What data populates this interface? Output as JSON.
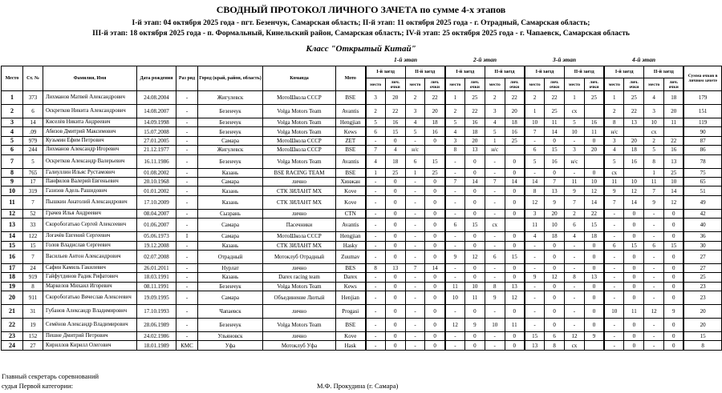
{
  "title": "СВОДНЫЙ ПРОТОКОЛ ЛИЧНОГО ЗАЧЕТА по сумме 4-х этапов",
  "subtitle1": "I-й этап: 04 октября 2025 года - пгт. Безенчук, Самарская область; II-й этап: 11 октября 2025 года - г. Отрадный, Самарская область;",
  "subtitle2": "III-й этап: 18 октября 2025 года - п. Формальный, Кинельский район, Самарская область; IV-й этап: 25 октября 2025 года - г. Чапаевск, Самарская область",
  "class_title": "Класс \"Открытый Китай\"",
  "stages": [
    "1-й этап",
    "2-й этап",
    "3-й этап",
    "4-й этап"
  ],
  "headers": {
    "place": "Место",
    "num": "Ст. №",
    "name": "Фамилия, Имя",
    "dob": "Дата рождения",
    "rank": "Раз ряд",
    "city": "Город (край, район, область)",
    "team": "Команда",
    "moto": "Мото",
    "race1": "I-й заезд",
    "race2": "II-й заезд",
    "pos": "место",
    "pts": "лич. очки",
    "total": "Сумма очков в личном зачете"
  },
  "rows": [
    {
      "place": "1",
      "num": "373",
      "name": "Лихманов Матвей Александрович",
      "dob": "24.08.2004",
      "rank": "-",
      "city": "Жигулевск",
      "team": "МотоШкола СССР",
      "moto": "BSE",
      "r": [
        "3",
        "20",
        "2",
        "22",
        "1",
        "25",
        "2",
        "22",
        "2",
        "22",
        "1",
        "25",
        "1",
        "25",
        "4",
        "18"
      ],
      "total": "179"
    },
    {
      "place": "2",
      "num": "6",
      "name": "Оскретков Никита Александрович",
      "dob": "14.08.2007",
      "rank": "-",
      "city": "Безенчук",
      "team": "Volga Motors Team",
      "moto": "Avantis",
      "r": [
        "2",
        "22",
        "3",
        "20",
        "2",
        "22",
        "3",
        "20",
        "1",
        "25",
        "сх",
        "",
        "2",
        "22",
        "3",
        "20"
      ],
      "total": "151"
    },
    {
      "place": "3",
      "num": "14",
      "name": "Киселёв Никита Андреевич",
      "dob": "14.09.1998",
      "rank": "-",
      "city": "Безенчук",
      "team": "Volga Motors Team",
      "moto": "Hengjian",
      "r": [
        "5",
        "16",
        "4",
        "18",
        "5",
        "16",
        "4",
        "18",
        "10",
        "11",
        "5",
        "16",
        "8",
        "13",
        "10",
        "11"
      ],
      "total": "119"
    },
    {
      "place": "4",
      "num": ".09",
      "name": "Абизов Дмитрий Максимович",
      "dob": "15.07.2008",
      "rank": "-",
      "city": "Безенчук",
      "team": "Volga Motors Team",
      "moto": "Kews",
      "r": [
        "6",
        "15",
        "5",
        "16",
        "4",
        "18",
        "5",
        "16",
        "7",
        "14",
        "10",
        "11",
        "н/с",
        "",
        "сх",
        ""
      ],
      "total": "90"
    },
    {
      "place": "5",
      "num": "979",
      "name": "Кузьмин Ефим Петрович",
      "dob": "27.01.2005",
      "rank": "-",
      "city": "Самара",
      "team": "МотоШкола СССР",
      "moto": "ZET",
      "r": [
        "-",
        "0",
        "-",
        "0",
        "3",
        "20",
        "1",
        "25",
        "-",
        "0",
        "-",
        "0",
        "3",
        "20",
        "2",
        "22"
      ],
      "total": "87"
    },
    {
      "place": "6",
      "num": "244",
      "name": "Лихманов Александр Игоревич",
      "dob": "21.12.1977",
      "rank": "-",
      "city": "Жигулевск",
      "team": "МотоШкола СССР",
      "moto": "BSE",
      "r": [
        "7",
        "4",
        "н/с",
        "",
        "8",
        "13",
        "н/с",
        "",
        "6",
        "15",
        "3",
        "20",
        "4",
        "18",
        "5",
        "16"
      ],
      "total": "86"
    },
    {
      "place": "7",
      "num": "5",
      "name": "Оскретков Александр Валерьевич",
      "dob": "16.11.1986",
      "rank": "-",
      "city": "Безенчук",
      "team": "Volga Motors Team",
      "moto": "Avantis",
      "r": [
        "4",
        "18",
        "6",
        "15",
        "-",
        "0",
        "-",
        "0",
        "5",
        "16",
        "н/с",
        "",
        "5",
        "16",
        "8",
        "13"
      ],
      "total": "78"
    },
    {
      "place": "8",
      "num": "765",
      "name": "Галиуллин Ильяс Рустамович",
      "dob": "01.08.2002",
      "rank": "-",
      "city": "Казань",
      "team": "BSE RACING TEAM",
      "moto": "BSE",
      "r": [
        "1",
        "25",
        "1",
        "25",
        "-",
        "0",
        "-",
        "0",
        "-",
        "0",
        "-",
        "0",
        "сх",
        "",
        "1",
        "25"
      ],
      "total": "75"
    },
    {
      "place": "9",
      "num": "17",
      "name": "Панфилов Валерий Евгеньевич",
      "dob": "20.10.1968",
      "rank": "-",
      "city": "Самара",
      "team": "лично",
      "moto": "Хинжан",
      "r": [
        "-",
        "0",
        "-",
        "0",
        "7",
        "14",
        "7",
        "14",
        "14",
        "7",
        "11",
        "10",
        "11",
        "10",
        "11",
        "10"
      ],
      "total": "65"
    },
    {
      "place": "10",
      "num": "319",
      "name": "Газизов Адель Рашидович",
      "dob": "01.01.2002",
      "rank": "-",
      "city": "Казань",
      "team": "СТК ЗИЛАНТ МХ",
      "moto": "Kove",
      "r": [
        "-",
        "0",
        "-",
        "0",
        "-",
        "0",
        "-",
        "0",
        "8",
        "13",
        "9",
        "12",
        "9",
        "12",
        "7",
        "14"
      ],
      "total": "51"
    },
    {
      "place": "11",
      "num": "7",
      "name": "Пышкин Анатолий Александрович",
      "dob": "17.10.2009",
      "rank": "-",
      "city": "Казань",
      "team": "СТК ЗИЛАНТ МХ",
      "moto": "Kove",
      "r": [
        "-",
        "0",
        "-",
        "0",
        "-",
        "0",
        "-",
        "0",
        "12",
        "9",
        "7",
        "14",
        "7",
        "14",
        "9",
        "12"
      ],
      "total": "49"
    },
    {
      "place": "12",
      "num": "52",
      "name": "Грачев Илья Андреевич",
      "dob": "08.04.2007",
      "rank": "-",
      "city": "Сызрань",
      "team": "лично",
      "moto": "CTN",
      "r": [
        "-",
        "0",
        "-",
        "0",
        "-",
        "0",
        "-",
        "0",
        "3",
        "20",
        "2",
        "22",
        "-",
        "0",
        "-",
        "0"
      ],
      "total": "42"
    },
    {
      "place": "13",
      "num": "33",
      "name": "Скоробогатько Сергей Алексеевич",
      "dob": "01.06.2007",
      "rank": "-",
      "city": "Самара",
      "team": "Пасечники",
      "moto": "Avantis",
      "r": [
        "-",
        "0",
        "-",
        "0",
        "6",
        "15",
        "сх",
        "",
        "11",
        "10",
        "6",
        "15",
        "-",
        "0",
        "-",
        "0"
      ],
      "total": "40"
    },
    {
      "place": "14",
      "num": "122",
      "name": "Логачёв Евгений Сергеевич",
      "dob": "05.06.1973",
      "rank": "I",
      "city": "Самара",
      "team": "МотоШкола СССР",
      "moto": "Hengjian",
      "r": [
        "-",
        "0",
        "-",
        "0",
        "-",
        "0",
        "-",
        "0",
        "4",
        "18",
        "4",
        "18",
        "-",
        "0",
        "-",
        "0"
      ],
      "total": "36"
    },
    {
      "place": "15",
      "num": "15",
      "name": "Голов Владислав Сергеевич",
      "dob": "19.12.2008",
      "rank": "-",
      "city": "Казань",
      "team": "СТК ЗИЛАНТ МХ",
      "moto": "Hasky",
      "r": [
        "-",
        "0",
        "-",
        "0",
        "-",
        "0",
        "-",
        "0",
        "-",
        "0",
        "-",
        "0",
        "6",
        "15",
        "6",
        "15"
      ],
      "total": "30"
    },
    {
      "place": "16",
      "num": "7",
      "name": "Васильев Антон Александрович",
      "dob": "02.07.2008",
      "rank": "-",
      "city": "Отрадный",
      "team": "Мотоклуб Отрадный",
      "moto": "Zuumav",
      "r": [
        "-",
        "0",
        "-",
        "0",
        "9",
        "12",
        "6",
        "15",
        "-",
        "0",
        "-",
        "0",
        "-",
        "0",
        "-",
        "0"
      ],
      "total": "27"
    },
    {
      "place": "17",
      "num": "24",
      "name": "Сафин Камиль Гакилевич",
      "dob": "26.01.2011",
      "rank": "-",
      "city": "Нурлат",
      "team": "лично",
      "moto": "BES",
      "r": [
        "8",
        "13",
        "7",
        "14",
        "-",
        "0",
        "-",
        "0",
        "-",
        "0",
        "-",
        "0",
        "-",
        "0",
        "-",
        "0"
      ],
      "total": "27"
    },
    {
      "place": "18",
      "num": "919",
      "name": "Гайфутдинов Радик Рифатович",
      "dob": "18.03.1991",
      "rank": "-",
      "city": "Казань",
      "team": "Darex racing team",
      "moto": "Darex",
      "r": [
        "-",
        "0",
        "-",
        "0",
        "-",
        "0",
        "-",
        "0",
        "9",
        "12",
        "8",
        "13",
        "-",
        "0",
        "-",
        "0"
      ],
      "total": "25"
    },
    {
      "place": "19",
      "num": "8",
      "name": "Маркелов Михаил Игоревич",
      "dob": "08.11.1991",
      "rank": "-",
      "city": "Безенчук",
      "team": "Volga Motors Team",
      "moto": "Kews",
      "r": [
        "-",
        "0",
        "-",
        "0",
        "11",
        "10",
        "8",
        "13",
        "-",
        "0",
        "-",
        "0",
        "-",
        "0",
        "-",
        "0"
      ],
      "total": "23"
    },
    {
      "place": "20",
      "num": "911",
      "name": "Скоробогатько Вячеслав Алексеевич",
      "dob": "19.09.1995",
      "rank": "-",
      "city": "Самара",
      "team": "Объединение Лютый",
      "moto": "Henjian",
      "r": [
        "-",
        "0",
        "-",
        "0",
        "10",
        "11",
        "9",
        "12",
        "-",
        "0",
        "-",
        "0",
        "-",
        "0",
        "-",
        "0"
      ],
      "total": "23"
    },
    {
      "place": "21",
      "num": "31",
      "name": "Губанов Александр Владимирович",
      "dob": "17.10.1993",
      "rank": "-",
      "city": "Чапаевск",
      "team": "лично",
      "moto": "Progasi",
      "r": [
        "-",
        "0",
        "-",
        "0",
        "-",
        "0",
        "-",
        "0",
        "-",
        "0",
        "-",
        "0",
        "10",
        "11",
        "12",
        "9"
      ],
      "total": "20"
    },
    {
      "place": "22",
      "num": "19",
      "name": "Семёнов Александр Владимирович",
      "dob": "28.06.1989",
      "rank": "-",
      "city": "Безенчук",
      "team": "Volga Motors Team",
      "moto": "BSE",
      "r": [
        "-",
        "0",
        "-",
        "0",
        "12",
        "9",
        "10",
        "11",
        "-",
        "0",
        "-",
        "0",
        "-",
        "0",
        "-",
        "0"
      ],
      "total": "20"
    },
    {
      "place": "23",
      "num": "152",
      "name": "Пешне Дмитрий Петрович",
      "dob": "24.02.1986",
      "rank": "-",
      "city": "Ульяновск",
      "team": "лично",
      "moto": "Kove",
      "r": [
        "-",
        "0",
        "-",
        "0",
        "-",
        "0",
        "-",
        "0",
        "15",
        "6",
        "12",
        "9",
        "-",
        "0",
        "-",
        "0"
      ],
      "total": "15"
    },
    {
      "place": "24",
      "num": "27",
      "name": "Кириллов Кирилл Олегович",
      "dob": "18.01.1989",
      "rank": "КМС",
      "city": "Уфа",
      "team": "Мотоклуб Уфа",
      "moto": "Hask",
      "r": [
        "-",
        "0",
        "-",
        "0",
        "-",
        "0",
        "-",
        "0",
        "13",
        "8",
        "сх",
        "",
        "-",
        "0",
        "-",
        "0"
      ],
      "total": "8"
    }
  ],
  "footer": {
    "line1": "Главный секретарь соревнований",
    "line2": "судья Первой категории:",
    "signer": "М.Ф. Прокудина (г. Самара)"
  }
}
